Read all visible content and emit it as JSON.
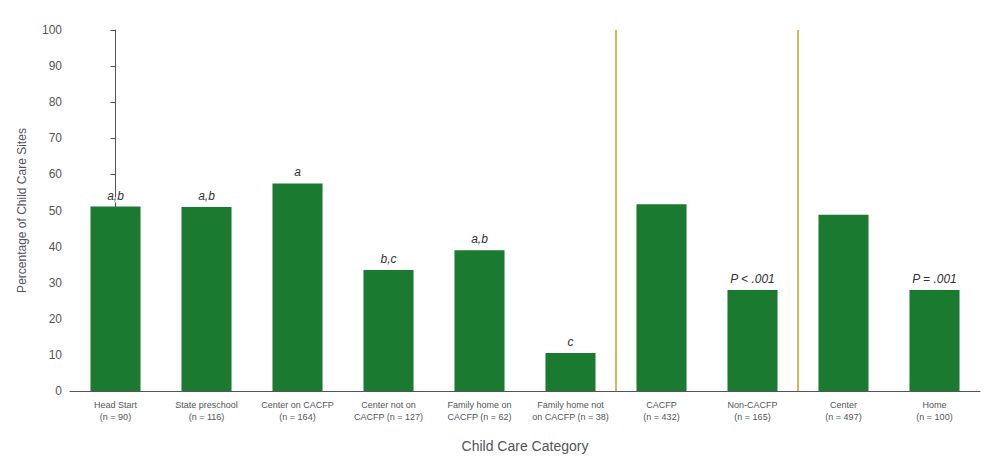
{
  "chart_data": {
    "type": "bar",
    "categories": [
      "Head Start\n(n = 90)",
      "State preschool\n(n = 116)",
      "Center on CACFP\n(n = 164)",
      "Center not on\nCACFP (n = 127)",
      "Family home on\nCACFP (n = 62)",
      "Family home not\non CACFP (n = 38)",
      "CACFP\n(n = 432)",
      "Non-CACFP\n(n = 165)",
      "Center\n(n = 497)",
      "Home\n(n = 100)"
    ],
    "values": [
      51.1,
      51.0,
      57.5,
      33.5,
      39.0,
      10.5,
      51.7,
      28.0,
      48.8,
      28.0
    ],
    "color": "#1a7a30",
    "xlabel": "Child Care Category",
    "ylabel": "Percentage of Child Care Sites",
    "ylim": [
      0,
      100
    ],
    "yticks": [
      0,
      10,
      20,
      30,
      40,
      50,
      60,
      70,
      80,
      90,
      100
    ],
    "grid": false,
    "annotations": [
      {
        "category": "Head Start\n(n = 90)",
        "text": "a,b"
      },
      {
        "category": "State preschool\n(n = 116)",
        "text": "a,b"
      },
      {
        "category": "Center on CACFP\n(n = 164)",
        "text": "a"
      },
      {
        "category": "Center not on\nCACFP (n = 127)",
        "text": "b,c"
      },
      {
        "category": "Family home on\nCACFP (n = 62)",
        "text": "a,b"
      },
      {
        "category": "Family home not\non CACFP (n = 38)",
        "text": "c"
      },
      {
        "category": "Non-CACFP\n(n = 165)",
        "text": "P < .001"
      },
      {
        "category": "Home\n(n = 100)",
        "text": "P = .001"
      }
    ],
    "separators": [
      {
        "after": "Family home not\non CACFP (n = 38)",
        "color": "#c8a020"
      },
      {
        "after": "Non-CACFP\n(n = 165)",
        "color": "#c8a020"
      }
    ]
  }
}
